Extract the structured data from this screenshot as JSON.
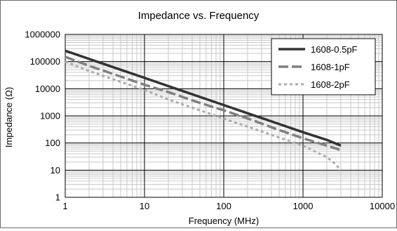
{
  "chart_data": {
    "type": "line",
    "title": "Impedance vs. Frequency",
    "xlabel": "Frequency (MHz)",
    "ylabel": "Impedance (Ω)",
    "x_scale": "log",
    "y_scale": "log",
    "xlim": [
      1,
      10000
    ],
    "ylim": [
      1,
      1000000
    ],
    "x_ticks": [
      "1",
      "10",
      "100",
      "1000",
      "10000"
    ],
    "y_ticks": [
      "1",
      "10",
      "100",
      "1000",
      "10000",
      "100000",
      "1000000"
    ],
    "grid": true,
    "legend_position": "top-right",
    "series": [
      {
        "name": "1608-0.5pF",
        "color": "#333333",
        "style": "solid",
        "x": [
          1,
          2,
          5,
          10,
          20,
          50,
          100,
          200,
          500,
          1000,
          2000,
          3000
        ],
        "y": [
          250000,
          125000,
          50000,
          25000,
          12500,
          5000,
          2500,
          1250,
          500,
          250,
          130,
          80
        ]
      },
      {
        "name": "1608-1pF",
        "color": "#808080",
        "style": "dashed",
        "x": [
          1,
          2,
          5,
          10,
          20,
          50,
          100,
          200,
          500,
          1000,
          2000,
          3000
        ],
        "y": [
          150000,
          70000,
          28000,
          14000,
          7500,
          3000,
          1600,
          800,
          300,
          150,
          80,
          55
        ]
      },
      {
        "name": "1608-2pF",
        "color": "#aaaaaa",
        "style": "dotted",
        "x": [
          1,
          2,
          5,
          10,
          20,
          50,
          100,
          200,
          500,
          1000,
          2000,
          2500,
          3000
        ],
        "y": [
          100000,
          45000,
          18000,
          9000,
          4000,
          1600,
          800,
          400,
          160,
          80,
          30,
          18,
          10
        ]
      }
    ]
  }
}
